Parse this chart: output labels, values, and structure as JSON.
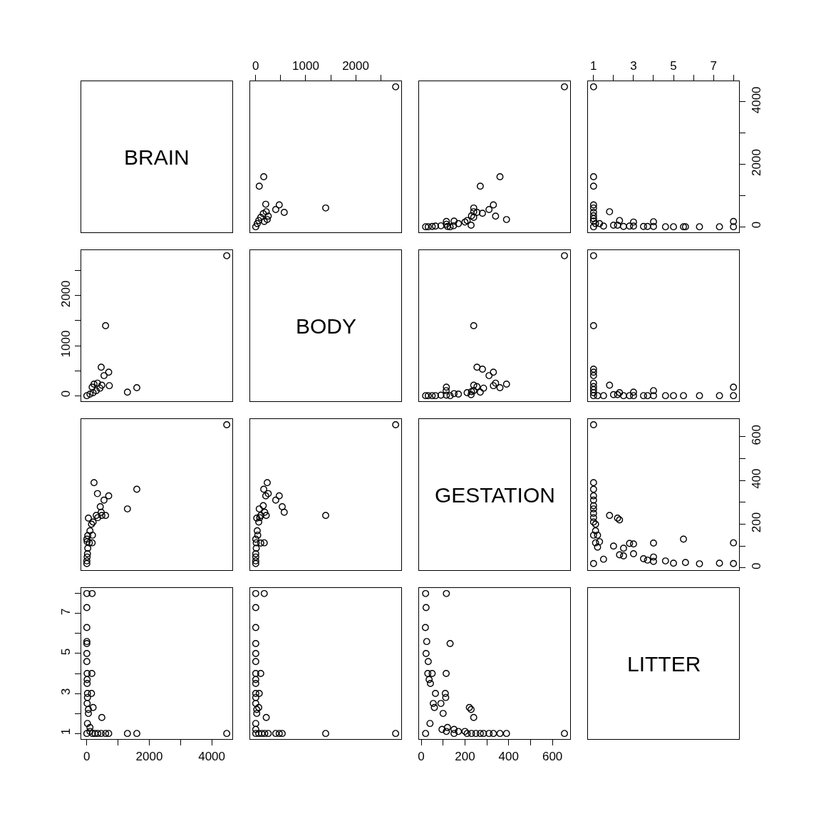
{
  "chart_data": [
    {
      "type": "other",
      "title": "BRAIN"
    },
    {
      "type": "scatter",
      "marker": "circle",
      "color": "#000000",
      "tick_labels": "x",
      "xlim": [
        -112,
        2912
      ],
      "ylim": [
        -179,
        4659
      ],
      "xticks": [
        0,
        {
          "value": 500,
          "label": null
        },
        1000,
        {
          "value": 1500,
          "label": null
        },
        2000,
        {
          "value": 2500,
          "label": null
        }
      ],
      "x": [
        2800,
        160,
        70,
        1400,
        470,
        570,
        400,
        210,
        200,
        250,
        150,
        100,
        60,
        30,
        0,
        170,
        230
      ],
      "values": [
        4480,
        1600,
        1300,
        600,
        700,
        460,
        550,
        480,
        720,
        340,
        420,
        300,
        200,
        100,
        0,
        170,
        230
      ]
    },
    {
      "type": "scatter",
      "marker": "circle",
      "color": "#000000",
      "tick_labels": false,
      "xlim": [
        -10,
        681
      ],
      "ylim": [
        -179,
        4659
      ],
      "x": [
        655,
        360,
        270,
        240,
        330,
        255,
        280,
        310,
        240,
        340,
        240,
        230,
        210,
        150,
        170,
        115,
        20,
        115,
        132,
        32,
        50,
        120,
        65,
        90,
        228,
        148,
        200,
        390
      ],
      "values": [
        4480,
        1600,
        1300,
        600,
        700,
        460,
        430,
        550,
        480,
        340,
        300,
        350,
        200,
        180,
        100,
        80,
        0,
        170,
        0,
        0,
        10,
        10,
        20,
        30,
        50,
        30,
        150,
        230
      ]
    },
    {
      "type": "scatter",
      "marker": "circle",
      "color": "#000000",
      "xlim": [
        0.72,
        8.28
      ],
      "ylim": [
        -179,
        4659
      ],
      "xticks": [
        1,
        {
          "value": 2,
          "label": null
        },
        3,
        {
          "value": 4,
          "label": null
        },
        5,
        {
          "value": 6,
          "label": null
        },
        7,
        {
          "value": 8,
          "label": null
        }
      ],
      "yticks": [
        0,
        {
          "value": 1000,
          "label": null
        },
        2000,
        {
          "value": 3000,
          "label": null
        },
        4000
      ],
      "x": [
        1,
        1,
        1,
        1,
        1,
        1,
        1.8,
        1,
        1,
        1,
        1.1,
        8,
        8,
        7.3,
        6.3,
        5.6,
        5.5,
        5,
        4.6,
        4,
        4,
        3.7,
        3.5,
        3,
        3,
        2.8,
        2.5,
        2.3,
        2.2,
        2,
        1.5,
        1.3,
        1
      ],
      "values": [
        4480,
        1600,
        1300,
        600,
        700,
        460,
        480,
        260,
        350,
        180,
        100,
        0,
        170,
        0,
        0,
        0,
        0,
        0,
        0,
        10,
        160,
        10,
        10,
        20,
        150,
        20,
        10,
        200,
        50,
        50,
        20,
        100,
        0
      ]
    },
    {
      "type": "scatter",
      "marker": "circle",
      "color": "#000000",
      "tick_labels": "y",
      "xlim": [
        -179,
        4659
      ],
      "ylim": [
        -112,
        2912
      ],
      "yticks": [
        0,
        {
          "value": 500,
          "label": null
        },
        1000,
        {
          "value": 1500,
          "label": null
        },
        2000,
        {
          "value": 2500,
          "label": null
        }
      ],
      "x": [
        4480,
        1600,
        1300,
        600,
        700,
        460,
        550,
        480,
        720,
        340,
        420,
        300,
        200,
        100,
        0,
        170,
        230
      ],
      "values": [
        2800,
        160,
        70,
        1400,
        470,
        570,
        400,
        210,
        200,
        250,
        150,
        100,
        60,
        30,
        0,
        170,
        230
      ]
    },
    {
      "type": "other",
      "title": "BODY"
    },
    {
      "type": "scatter",
      "marker": "circle",
      "color": "#000000",
      "tick_labels": false,
      "xlim": [
        -10,
        681
      ],
      "ylim": [
        -112,
        2912
      ],
      "x": [
        655,
        360,
        270,
        240,
        330,
        255,
        280,
        310,
        240,
        330,
        340,
        285,
        255,
        240,
        230,
        210,
        150,
        170,
        115,
        20,
        115,
        132,
        32,
        50,
        114,
        65,
        90,
        228,
        390
      ],
      "values": [
        2800,
        160,
        70,
        1400,
        470,
        570,
        530,
        400,
        210,
        200,
        250,
        150,
        180,
        100,
        80,
        60,
        40,
        30,
        10,
        0,
        170,
        0,
        0,
        0,
        100,
        0,
        10,
        20,
        230
      ]
    },
    {
      "type": "scatter",
      "marker": "circle",
      "color": "#000000",
      "tick_labels": false,
      "xlim": [
        0.72,
        8.28
      ],
      "ylim": [
        -112,
        2912
      ],
      "x": [
        1,
        1,
        1,
        1,
        1,
        1.8,
        1,
        1,
        1,
        1,
        1.2,
        8,
        8,
        7.3,
        6.3,
        5.5,
        5,
        4.6,
        4,
        4,
        3.7,
        3.5,
        3,
        3,
        2.8,
        2.5,
        2.3,
        2.2,
        2,
        1.5,
        1
      ],
      "values": [
        2800,
        1400,
        470,
        530,
        400,
        210,
        250,
        180,
        120,
        60,
        0,
        0,
        170,
        0,
        0,
        0,
        0,
        0,
        0,
        100,
        0,
        0,
        0,
        70,
        0,
        0,
        60,
        20,
        20,
        0,
        0
      ]
    },
    {
      "type": "scatter",
      "marker": "circle",
      "color": "#000000",
      "tick_labels": false,
      "xlim": [
        -179,
        4659
      ],
      "ylim": [
        -10,
        681
      ],
      "x": [
        4480,
        1600,
        1300,
        600,
        700,
        460,
        430,
        550,
        480,
        340,
        300,
        350,
        200,
        180,
        100,
        80,
        0,
        170,
        0,
        0,
        10,
        10,
        20,
        30,
        50,
        30,
        150,
        230
      ],
      "values": [
        655,
        360,
        270,
        240,
        330,
        255,
        280,
        310,
        240,
        340,
        240,
        230,
        210,
        150,
        170,
        115,
        20,
        115,
        132,
        32,
        50,
        120,
        65,
        90,
        228,
        148,
        200,
        390
      ]
    },
    {
      "type": "scatter",
      "marker": "circle",
      "color": "#000000",
      "tick_labels": false,
      "xlim": [
        -112,
        2912
      ],
      "ylim": [
        -10,
        681
      ],
      "x": [
        2800,
        160,
        70,
        1400,
        470,
        570,
        530,
        400,
        210,
        200,
        250,
        150,
        180,
        100,
        80,
        60,
        40,
        30,
        10,
        0,
        170,
        0,
        0,
        0,
        100,
        0,
        10,
        20,
        230
      ],
      "values": [
        655,
        360,
        270,
        240,
        330,
        255,
        280,
        310,
        240,
        330,
        340,
        285,
        255,
        240,
        230,
        210,
        150,
        170,
        115,
        20,
        115,
        132,
        32,
        50,
        114,
        65,
        90,
        228,
        390
      ]
    },
    {
      "type": "other",
      "title": "GESTATION"
    },
    {
      "type": "scatter",
      "marker": "circle",
      "color": "#000000",
      "tick_labels": "y",
      "xlim": [
        0.72,
        8.28
      ],
      "ylim": [
        -10,
        681
      ],
      "yticks": [
        0,
        {
          "value": 100,
          "label": null
        },
        200,
        {
          "value": 300,
          "label": null
        },
        400,
        {
          "value": 500,
          "label": null
        },
        600
      ],
      "x": [
        1,
        1,
        1,
        1,
        1,
        1.8,
        1,
        1,
        1,
        1,
        1,
        1.1,
        1.2,
        1.1,
        8,
        8,
        7.3,
        6.3,
        5.6,
        5.5,
        5,
        4.6,
        4,
        4,
        4,
        3.7,
        3.5,
        3,
        3,
        2.8,
        2.5,
        2.5,
        2.3,
        2.3,
        2.2,
        2,
        1.5,
        1.3,
        1.2,
        1.1,
        1,
        1
      ],
      "values": [
        655,
        360,
        270,
        330,
        310,
        240,
        285,
        250,
        230,
        210,
        150,
        170,
        150,
        115,
        20,
        115,
        22,
        19,
        25,
        132,
        22,
        32,
        30,
        50,
        114,
        36,
        42,
        65,
        110,
        112,
        55,
        90,
        60,
        220,
        228,
        100,
        40,
        120,
        95,
        200,
        20,
        390
      ]
    },
    {
      "type": "scatter",
      "marker": "circle",
      "color": "#000000",
      "xlim": [
        -179,
        4659
      ],
      "ylim": [
        0.72,
        8.28
      ],
      "xticks": [
        0,
        {
          "value": 1000,
          "label": null
        },
        2000,
        {
          "value": 3000,
          "label": null
        },
        4000
      ],
      "yticks": [
        1,
        {
          "value": 2,
          "label": null
        },
        3,
        {
          "value": 4,
          "label": null
        },
        5,
        {
          "value": 6,
          "label": null
        },
        7,
        {
          "value": 8,
          "label": null
        }
      ],
      "x": [
        4480,
        1600,
        1300,
        600,
        700,
        460,
        480,
        260,
        350,
        180,
        100,
        0,
        170,
        0,
        0,
        0,
        0,
        0,
        0,
        10,
        160,
        10,
        10,
        20,
        150,
        20,
        10,
        200,
        50,
        50,
        20,
        100,
        0
      ],
      "values": [
        1,
        1,
        1,
        1,
        1,
        1,
        1.8,
        1,
        1,
        1,
        1.1,
        8,
        8,
        7.3,
        6.3,
        5.6,
        5.5,
        5,
        4.6,
        4,
        4,
        3.7,
        3.5,
        3,
        3,
        2.8,
        2.5,
        2.3,
        2.2,
        2,
        1.5,
        1.3,
        1
      ]
    },
    {
      "type": "scatter",
      "marker": "circle",
      "color": "#000000",
      "tick_labels": false,
      "xlim": [
        -112,
        2912
      ],
      "ylim": [
        0.72,
        8.28
      ],
      "x": [
        2800,
        1400,
        470,
        530,
        400,
        210,
        250,
        180,
        120,
        60,
        0,
        0,
        170,
        0,
        0,
        0,
        0,
        0,
        0,
        100,
        0,
        0,
        0,
        70,
        0,
        0,
        60,
        20,
        20,
        0,
        0
      ],
      "values": [
        1,
        1,
        1,
        1,
        1,
        1.8,
        1,
        1,
        1,
        1,
        1.2,
        8,
        8,
        7.3,
        6.3,
        5.5,
        5,
        4.6,
        4,
        4,
        3.7,
        3.5,
        3,
        3,
        2.8,
        2.5,
        2.3,
        2.2,
        2,
        1.5,
        1
      ]
    },
    {
      "type": "scatter",
      "marker": "circle",
      "color": "#000000",
      "tick_labels": "x",
      "xlim": [
        -10,
        681
      ],
      "ylim": [
        0.72,
        8.28
      ],
      "xticks": [
        0,
        {
          "value": 100,
          "label": null
        },
        200,
        {
          "value": 300,
          "label": null
        },
        400,
        {
          "value": 500,
          "label": null
        },
        600
      ],
      "x": [
        655,
        360,
        270,
        330,
        310,
        240,
        285,
        250,
        230,
        210,
        150,
        170,
        150,
        115,
        20,
        115,
        22,
        19,
        25,
        132,
        22,
        32,
        30,
        50,
        114,
        36,
        42,
        65,
        110,
        112,
        55,
        90,
        60,
        220,
        228,
        100,
        40,
        120,
        95,
        200,
        20,
        390
      ],
      "values": [
        1,
        1,
        1,
        1,
        1,
        1.8,
        1,
        1,
        1,
        1,
        1,
        1.1,
        1.2,
        1.1,
        8,
        8,
        7.3,
        6.3,
        5.6,
        5.5,
        5,
        4.6,
        4,
        4,
        4,
        3.7,
        3.5,
        3,
        3,
        2.8,
        2.5,
        2.5,
        2.3,
        2.3,
        2.2,
        2,
        1.5,
        1.3,
        1.2,
        1.1,
        1,
        1
      ]
    },
    {
      "type": "other",
      "title": "LITTER"
    }
  ]
}
